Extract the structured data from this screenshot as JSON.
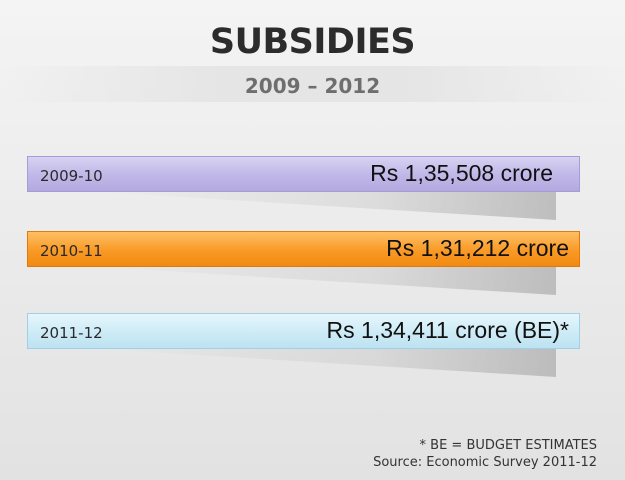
{
  "title": "SUBSIDIES",
  "subtitle": "2009 – 2012",
  "chart_data": {
    "type": "bar",
    "title": "SUBSIDIES",
    "subtitle": "2009 – 2012",
    "categories": [
      "2009-10",
      "2010-11",
      "2011-12"
    ],
    "values": [
      135508,
      131212,
      134411
    ],
    "value_labels": [
      "Rs 1,35,508 crore",
      "Rs 1,31,212 crore",
      "Rs 1,34,411 crore (BE)*"
    ],
    "colors": [
      "#c1b9e8",
      "#f99a25",
      "#cdebf6"
    ]
  },
  "footnote": {
    "be_note": "* BE = BUDGET ESTIMATES",
    "source": "Source: Economic Survey 2011-12"
  }
}
